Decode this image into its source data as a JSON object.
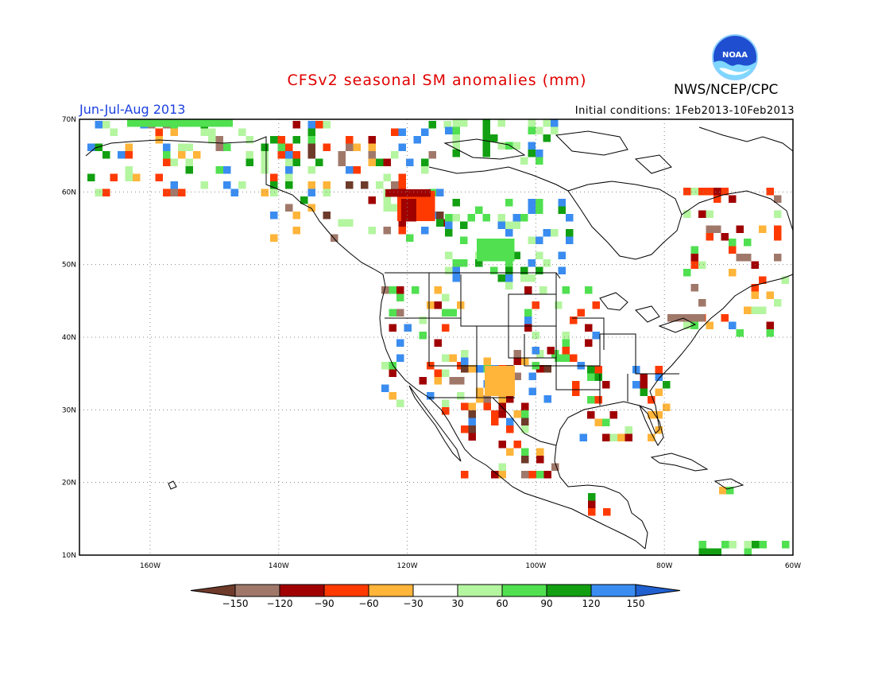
{
  "header": {
    "title": "CFSv2 seasonal SM anomalies (mm)",
    "season": "Jun-Jul-Aug 2013",
    "initial_conditions": "Initial conditions: 1Feb2013-10Feb2013",
    "agency": "NWS/NCEP/CPC",
    "logo_text": "NOAA"
  },
  "map": {
    "lat_labels": [
      "70N",
      "60N",
      "50N",
      "40N",
      "30N",
      "20N",
      "10N"
    ],
    "lon_labels": [
      "160W",
      "140W",
      "120W",
      "100W",
      "80W",
      "60W"
    ],
    "extent": {
      "lon_min": -171,
      "lon_max": -60,
      "lat_min": 10,
      "lat_max": 70
    },
    "grid": "dotted"
  },
  "colorbar": {
    "labels": [
      "-150",
      "-120",
      "-90",
      "-60",
      "-30",
      "30",
      "60",
      "90",
      "120",
      "150"
    ],
    "colors": [
      "#6e3a2a",
      "#a0786a",
      "#a00000",
      "#ff3a00",
      "#ffb43a",
      "#ffffff",
      "#b4f5a0",
      "#50e050",
      "#12a012",
      "#3a8cf0",
      "#2060d0"
    ]
  },
  "anomaly_colors": {
    "dark_brown": "#6e3a2a",
    "brown": "#a0786a",
    "dark_red": "#a00000",
    "red": "#ff3a00",
    "orange": "#ffb43a",
    "light_green": "#b4f5a0",
    "green": "#50e050",
    "dark_green": "#12a012",
    "blue": "#3a8cf0"
  }
}
